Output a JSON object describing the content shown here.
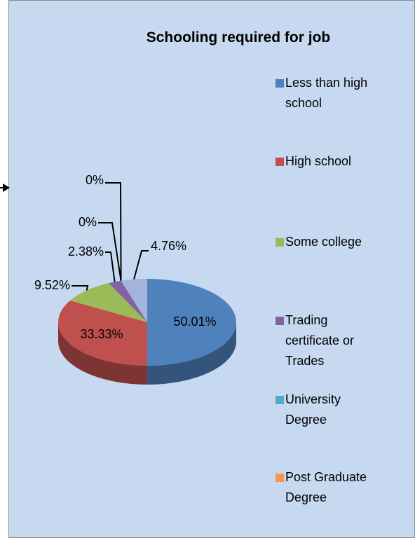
{
  "chart_data": {
    "type": "pie",
    "title": "Schooling required for job",
    "categories": [
      "Less than high school",
      "High school",
      "Some college",
      "Trading certificate or Trades",
      "University Degree",
      "Post Graduate Degree",
      null
    ],
    "values": [
      50.01,
      33.33,
      9.52,
      2.38,
      0,
      0,
      4.76
    ],
    "value_labels": [
      "50.01%",
      "33.33%",
      "9.52%",
      "2.38%",
      "0%",
      "0%",
      "4.76%"
    ],
    "colors": [
      "#4f81bd",
      "#c0504d",
      "#9bbb59",
      "#8064a2",
      "#4bacc6",
      "#f79646",
      "#a3b4dc"
    ],
    "legend": "right"
  }
}
